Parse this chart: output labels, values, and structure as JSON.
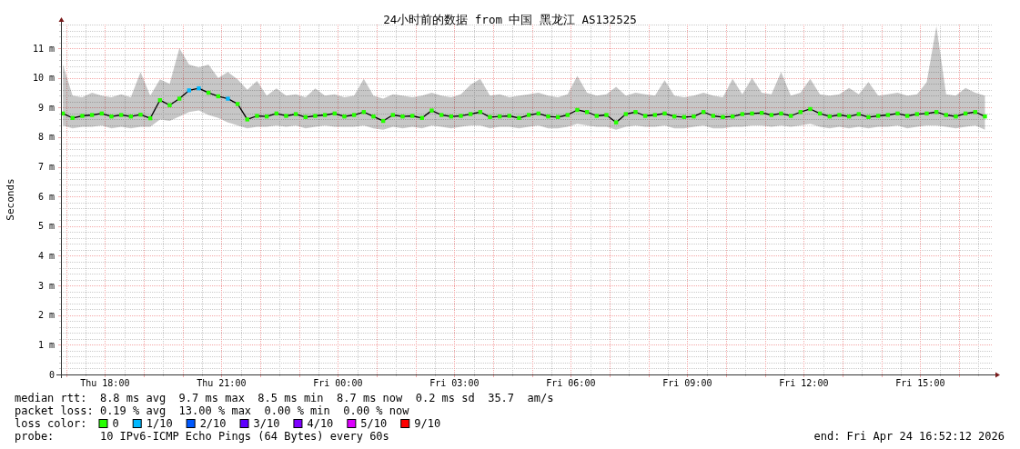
{
  "chart_data": {
    "type": "line",
    "title": "24小时前的数据 from 中国 黑龙江 AS132525",
    "ylabel": "Seconds",
    "legend_title": "loss color:",
    "legend": "bottom",
    "grid": true,
    "marker": "square",
    "xlim": [
      "2026-04-23T16:52",
      "2026-04-24T16:52"
    ],
    "ylim": [
      0,
      11.8
    ],
    "xticks": [
      {
        "value": "2026-04-23T17:00",
        "label": null
      },
      {
        "value": "2026-04-23T17:30",
        "label": null
      },
      {
        "value": "2026-04-23T18:00",
        "label": "Thu 18:00"
      },
      {
        "value": "2026-04-23T18:30",
        "label": null
      },
      {
        "value": "2026-04-23T19:00",
        "label": null
      },
      {
        "value": "2026-04-23T19:30",
        "label": null
      },
      {
        "value": "2026-04-23T20:00",
        "label": null
      },
      {
        "value": "2026-04-23T20:30",
        "label": null
      },
      {
        "value": "2026-04-23T21:00",
        "label": "Thu 21:00"
      },
      {
        "value": "2026-04-23T21:30",
        "label": null
      },
      {
        "value": "2026-04-23T22:00",
        "label": null
      },
      {
        "value": "2026-04-23T22:30",
        "label": null
      },
      {
        "value": "2026-04-23T23:00",
        "label": null
      },
      {
        "value": "2026-04-23T23:30",
        "label": null
      },
      {
        "value": "2026-04-24T00:00",
        "label": "Fri 00:00"
      },
      {
        "value": "2026-04-24T00:30",
        "label": null
      },
      {
        "value": "2026-04-24T01:00",
        "label": null
      },
      {
        "value": "2026-04-24T01:30",
        "label": null
      },
      {
        "value": "2026-04-24T02:00",
        "label": null
      },
      {
        "value": "2026-04-24T02:30",
        "label": null
      },
      {
        "value": "2026-04-24T03:00",
        "label": "Fri 03:00"
      },
      {
        "value": "2026-04-24T03:30",
        "label": null
      },
      {
        "value": "2026-04-24T04:00",
        "label": null
      },
      {
        "value": "2026-04-24T04:30",
        "label": null
      },
      {
        "value": "2026-04-24T05:00",
        "label": null
      },
      {
        "value": "2026-04-24T05:30",
        "label": null
      },
      {
        "value": "2026-04-24T06:00",
        "label": "Fri 06:00"
      },
      {
        "value": "2026-04-24T06:30",
        "label": null
      },
      {
        "value": "2026-04-24T07:00",
        "label": null
      },
      {
        "value": "2026-04-24T07:30",
        "label": null
      },
      {
        "value": "2026-04-24T08:00",
        "label": null
      },
      {
        "value": "2026-04-24T08:30",
        "label": null
      },
      {
        "value": "2026-04-24T09:00",
        "label": "Fri 09:00"
      },
      {
        "value": "2026-04-24T09:30",
        "label": null
      },
      {
        "value": "2026-04-24T10:00",
        "label": null
      },
      {
        "value": "2026-04-24T10:30",
        "label": null
      },
      {
        "value": "2026-04-24T11:00",
        "label": null
      },
      {
        "value": "2026-04-24T11:30",
        "label": null
      },
      {
        "value": "2026-04-24T12:00",
        "label": "Fri 12:00"
      },
      {
        "value": "2026-04-24T12:30",
        "label": null
      },
      {
        "value": "2026-04-24T13:00",
        "label": null
      },
      {
        "value": "2026-04-24T13:30",
        "label": null
      },
      {
        "value": "2026-04-24T14:00",
        "label": null
      },
      {
        "value": "2026-04-24T14:30",
        "label": null
      },
      {
        "value": "2026-04-24T15:00",
        "label": "Fri 15:00"
      },
      {
        "value": "2026-04-24T15:30",
        "label": null
      },
      {
        "value": "2026-04-24T16:00",
        "label": null
      },
      {
        "value": "2026-04-24T16:30",
        "label": null
      }
    ],
    "yticks": [
      0,
      {
        "value": 0.2,
        "label": null
      },
      {
        "value": 0.4,
        "label": null
      },
      {
        "value": 0.6,
        "label": null
      },
      {
        "value": 0.8,
        "label": null
      },
      {
        "value": 1,
        "label": "1 m"
      },
      {
        "value": 1.2,
        "label": null
      },
      {
        "value": 1.4,
        "label": null
      },
      {
        "value": 1.6,
        "label": null
      },
      {
        "value": 1.8,
        "label": null
      },
      {
        "value": 2,
        "label": "2 m"
      },
      {
        "value": 2.2,
        "label": null
      },
      {
        "value": 2.4,
        "label": null
      },
      {
        "value": 2.6,
        "label": null
      },
      {
        "value": 2.8,
        "label": null
      },
      {
        "value": 3,
        "label": "3 m"
      },
      {
        "value": 3.2,
        "label": null
      },
      {
        "value": 3.4,
        "label": null
      },
      {
        "value": 3.6,
        "label": null
      },
      {
        "value": 3.8,
        "label": null
      },
      {
        "value": 4,
        "label": "4 m"
      },
      {
        "value": 4.2,
        "label": null
      },
      {
        "value": 4.4,
        "label": null
      },
      {
        "value": 4.6,
        "label": null
      },
      {
        "value": 4.8,
        "label": null
      },
      {
        "value": 5,
        "label": "5 m"
      },
      {
        "value": 5.2,
        "label": null
      },
      {
        "value": 5.4,
        "label": null
      },
      {
        "value": 5.6,
        "label": null
      },
      {
        "value": 5.8,
        "label": null
      },
      {
        "value": 6,
        "label": "6 m"
      },
      {
        "value": 6.2,
        "label": null
      },
      {
        "value": 6.4,
        "label": null
      },
      {
        "value": 6.6,
        "label": null
      },
      {
        "value": 6.8,
        "label": null
      },
      {
        "value": 7,
        "label": "7 m"
      },
      {
        "value": 7.2,
        "label": null
      },
      {
        "value": 7.4,
        "label": null
      },
      {
        "value": 7.6,
        "label": null
      },
      {
        "value": 7.8,
        "label": null
      },
      {
        "value": 8,
        "label": "8 m"
      },
      {
        "value": 8.2,
        "label": null
      },
      {
        "value": 8.4,
        "label": null
      },
      {
        "value": 8.6,
        "label": null
      },
      {
        "value": 8.8,
        "label": null
      },
      {
        "value": 9,
        "label": "9 m"
      },
      {
        "value": 9.2,
        "label": null
      },
      {
        "value": 9.4,
        "label": null
      },
      {
        "value": 9.6,
        "label": null
      },
      {
        "value": 9.8,
        "label": null
      },
      {
        "value": 10,
        "label": "10 m"
      },
      {
        "value": 10.2,
        "label": null
      },
      {
        "value": 10.4,
        "label": null
      },
      {
        "value": 10.6,
        "label": null
      },
      {
        "value": 10.8,
        "label": null
      },
      {
        "value": 11,
        "label": "11 m"
      },
      {
        "value": 11.2,
        "label": null
      },
      {
        "value": 11.4,
        "label": null
      },
      {
        "value": 11.6,
        "label": null
      },
      {
        "value": 11.8,
        "label": null
      }
    ],
    "x": [
      "2026-04-23T16:55",
      "2026-04-23T17:10",
      "2026-04-23T17:25",
      "2026-04-23T17:40",
      "2026-04-23T17:55",
      "2026-04-23T18:10",
      "2026-04-23T18:25",
      "2026-04-23T18:40",
      "2026-04-23T18:55",
      "2026-04-23T19:10",
      "2026-04-23T19:25",
      "2026-04-23T19:40",
      "2026-04-23T19:55",
      "2026-04-23T20:10",
      "2026-04-23T20:25",
      "2026-04-23T20:40",
      "2026-04-23T20:55",
      "2026-04-23T21:10",
      "2026-04-23T21:25",
      "2026-04-23T21:40",
      "2026-04-23T21:55",
      "2026-04-23T22:10",
      "2026-04-23T22:25",
      "2026-04-23T22:40",
      "2026-04-23T22:55",
      "2026-04-23T23:10",
      "2026-04-23T23:25",
      "2026-04-23T23:40",
      "2026-04-23T23:55",
      "2026-04-24T00:10",
      "2026-04-24T00:25",
      "2026-04-24T00:40",
      "2026-04-24T00:55",
      "2026-04-24T01:10",
      "2026-04-24T01:25",
      "2026-04-24T01:40",
      "2026-04-24T01:55",
      "2026-04-24T02:10",
      "2026-04-24T02:25",
      "2026-04-24T02:40",
      "2026-04-24T02:55",
      "2026-04-24T03:10",
      "2026-04-24T03:25",
      "2026-04-24T03:40",
      "2026-04-24T03:55",
      "2026-04-24T04:10",
      "2026-04-24T04:25",
      "2026-04-24T04:40",
      "2026-04-24T04:55",
      "2026-04-24T05:10",
      "2026-04-24T05:25",
      "2026-04-24T05:40",
      "2026-04-24T05:55",
      "2026-04-24T06:10",
      "2026-04-24T06:25",
      "2026-04-24T06:40",
      "2026-04-24T06:55",
      "2026-04-24T07:10",
      "2026-04-24T07:25",
      "2026-04-24T07:40",
      "2026-04-24T07:55",
      "2026-04-24T08:10",
      "2026-04-24T08:25",
      "2026-04-24T08:40",
      "2026-04-24T08:55",
      "2026-04-24T09:10",
      "2026-04-24T09:25",
      "2026-04-24T09:40",
      "2026-04-24T09:55",
      "2026-04-24T10:10",
      "2026-04-24T10:25",
      "2026-04-24T10:40",
      "2026-04-24T10:55",
      "2026-04-24T11:10",
      "2026-04-24T11:25",
      "2026-04-24T11:40",
      "2026-04-24T11:55",
      "2026-04-24T12:10",
      "2026-04-24T12:25",
      "2026-04-24T12:40",
      "2026-04-24T12:55",
      "2026-04-24T13:10",
      "2026-04-24T13:25",
      "2026-04-24T13:40",
      "2026-04-24T13:55",
      "2026-04-24T14:10",
      "2026-04-24T14:25",
      "2026-04-24T14:40",
      "2026-04-24T14:55",
      "2026-04-24T15:10",
      "2026-04-24T15:25",
      "2026-04-24T15:40",
      "2026-04-24T15:55",
      "2026-04-24T16:10",
      "2026-04-24T16:25",
      "2026-04-24T16:40"
    ],
    "series": [
      {
        "color": "#000000",
        "marker": "none",
        "values": [
          8.8,
          8.65,
          8.72,
          8.75,
          8.8,
          8.7,
          8.75,
          8.7,
          8.76,
          8.64,
          9.25,
          9.08,
          9.3,
          9.58,
          9.65,
          9.5,
          9.38,
          9.3,
          9.12,
          8.6,
          8.72,
          8.7,
          8.8,
          8.72,
          8.78,
          8.68,
          8.72,
          8.75,
          8.8,
          8.7,
          8.75,
          8.85,
          8.7,
          8.55,
          8.75,
          8.7,
          8.72,
          8.65,
          8.9,
          8.75,
          8.7,
          8.72,
          8.78,
          8.85,
          8.68,
          8.7,
          8.72,
          8.65,
          8.75,
          8.8,
          8.7,
          8.68,
          8.75,
          8.92,
          8.85,
          8.72,
          8.75,
          8.5,
          8.78,
          8.85,
          8.72,
          8.75,
          8.8,
          8.7,
          8.68,
          8.7,
          8.85,
          8.72,
          8.68,
          8.7,
          8.78,
          8.8,
          8.82,
          8.75,
          8.8,
          8.72,
          8.85,
          8.95,
          8.8,
          8.7,
          8.75,
          8.7,
          8.78,
          8.68,
          8.72,
          8.75,
          8.8,
          8.72,
          8.78,
          8.8,
          8.85,
          8.75,
          8.7,
          8.8,
          8.85,
          8.7
        ],
        "lower": [
          8.4,
          8.3,
          8.35,
          8.35,
          8.4,
          8.3,
          8.35,
          8.3,
          8.35,
          8.35,
          8.6,
          8.55,
          8.7,
          8.85,
          8.9,
          8.75,
          8.65,
          8.5,
          8.4,
          8.3,
          8.35,
          8.35,
          8.4,
          8.35,
          8.4,
          8.3,
          8.35,
          8.4,
          8.35,
          8.35,
          8.35,
          8.4,
          8.3,
          8.25,
          8.35,
          8.3,
          8.35,
          8.3,
          8.4,
          8.35,
          8.3,
          8.35,
          8.4,
          8.4,
          8.3,
          8.35,
          8.35,
          8.3,
          8.35,
          8.4,
          8.3,
          8.3,
          8.35,
          8.45,
          8.4,
          8.35,
          8.35,
          8.25,
          8.35,
          8.4,
          8.35,
          8.35,
          8.4,
          8.3,
          8.3,
          8.35,
          8.4,
          8.3,
          8.3,
          8.35,
          8.35,
          8.4,
          8.4,
          8.35,
          8.4,
          8.35,
          8.4,
          8.45,
          8.35,
          8.3,
          8.35,
          8.3,
          8.35,
          8.3,
          8.35,
          8.35,
          8.4,
          8.3,
          8.35,
          8.4,
          8.4,
          8.35,
          8.3,
          8.35,
          8.4,
          8.25
        ],
        "upper": [
          10.45,
          9.4,
          9.35,
          9.5,
          9.4,
          9.35,
          9.45,
          9.35,
          10.2,
          9.4,
          9.95,
          9.8,
          11.0,
          10.45,
          10.35,
          10.45,
          10.0,
          10.2,
          9.95,
          9.6,
          9.9,
          9.4,
          9.65,
          9.4,
          9.45,
          9.35,
          9.65,
          9.4,
          9.45,
          9.35,
          9.4,
          9.97,
          9.4,
          9.3,
          9.45,
          9.4,
          9.35,
          9.4,
          9.5,
          9.4,
          9.35,
          9.45,
          9.77,
          9.97,
          9.4,
          9.45,
          9.35,
          9.4,
          9.45,
          9.5,
          9.4,
          9.35,
          9.45,
          10.07,
          9.5,
          9.4,
          9.45,
          9.7,
          9.4,
          9.5,
          9.45,
          9.4,
          9.92,
          9.4,
          9.35,
          9.4,
          9.5,
          9.4,
          9.35,
          9.97,
          9.45,
          10.0,
          9.5,
          9.45,
          10.2,
          9.4,
          9.5,
          9.97,
          9.45,
          9.4,
          9.45,
          9.66,
          9.45,
          9.86,
          9.4,
          9.45,
          9.5,
          9.4,
          9.45,
          9.86,
          11.75,
          9.45,
          9.4,
          9.66,
          9.5,
          9.4
        ]
      },
      {
        "name": "0",
        "type": "scatter",
        "color": "#26ff00",
        "values": [
          8.8,
          8.65,
          8.72,
          8.75,
          8.8,
          8.7,
          8.75,
          8.7,
          8.76,
          8.64,
          9.25,
          9.08,
          9.3,
          null,
          null,
          9.5,
          9.38,
          null,
          9.12,
          8.6,
          8.72,
          8.7,
          8.8,
          8.72,
          8.78,
          8.68,
          8.72,
          8.75,
          8.8,
          8.7,
          8.75,
          8.85,
          8.7,
          8.55,
          8.75,
          8.7,
          8.72,
          8.65,
          8.9,
          8.75,
          8.7,
          8.72,
          8.78,
          8.85,
          8.68,
          8.7,
          8.72,
          8.65,
          8.75,
          8.8,
          8.7,
          8.68,
          8.75,
          8.92,
          8.85,
          8.72,
          8.75,
          8.5,
          8.78,
          8.85,
          8.72,
          8.75,
          8.8,
          8.7,
          8.68,
          8.7,
          8.85,
          8.72,
          8.68,
          8.7,
          8.78,
          8.8,
          8.82,
          8.75,
          8.8,
          8.72,
          8.85,
          8.95,
          8.8,
          8.7,
          8.75,
          8.7,
          8.78,
          8.68,
          8.72,
          8.75,
          8.8,
          8.72,
          8.78,
          8.8,
          8.85,
          8.75,
          8.7,
          8.8,
          8.85,
          8.7
        ]
      },
      {
        "name": "1/10",
        "type": "scatter",
        "color": "#00b8ff",
        "x": [
          "2026-04-23T20:10",
          "2026-04-23T20:25",
          "2026-04-23T21:10"
        ],
        "values": [
          9.58,
          9.65,
          9.3
        ]
      },
      {
        "name": "2/10",
        "type": "scatter",
        "color": "#0059ff",
        "values": [
          null,
          null,
          null,
          null,
          null,
          null,
          null,
          null,
          null,
          null,
          null,
          null,
          null,
          null,
          null,
          null,
          null,
          null,
          null,
          null,
          null,
          null,
          null,
          null,
          null,
          null,
          null,
          null,
          null,
          null,
          null,
          null,
          null,
          null,
          null,
          null,
          null,
          null,
          null,
          null,
          null,
          null,
          null,
          null,
          null,
          null,
          null,
          null,
          null,
          null,
          null,
          null,
          null,
          null,
          null,
          null,
          null,
          null,
          null,
          null,
          null,
          null,
          null,
          null,
          null,
          null,
          null,
          null,
          null,
          null,
          null,
          null,
          null,
          null,
          null,
          null,
          null,
          null,
          null,
          null,
          null,
          null,
          null,
          null,
          null,
          null,
          null,
          null,
          null,
          null,
          null,
          null,
          null,
          null,
          null,
          null
        ]
      },
      {
        "name": "3/10",
        "type": "scatter",
        "color": "#5e00ff",
        "values": [
          null,
          null,
          null,
          null,
          null,
          null,
          null,
          null,
          null,
          null,
          null,
          null,
          null,
          null,
          null,
          null,
          null,
          null,
          null,
          null,
          null,
          null,
          null,
          null,
          null,
          null,
          null,
          null,
          null,
          null,
          null,
          null,
          null,
          null,
          null,
          null,
          null,
          null,
          null,
          null,
          null,
          null,
          null,
          null,
          null,
          null,
          null,
          null,
          null,
          null,
          null,
          null,
          null,
          null,
          null,
          null,
          null,
          null,
          null,
          null,
          null,
          null,
          null,
          null,
          null,
          null,
          null,
          null,
          null,
          null,
          null,
          null,
          null,
          null,
          null,
          null,
          null,
          null,
          null,
          null,
          null,
          null,
          null,
          null,
          null,
          null,
          null,
          null,
          null,
          null,
          null,
          null,
          null,
          null,
          null,
          null
        ]
      },
      {
        "name": "4/10",
        "type": "scatter",
        "color": "#7e00ff",
        "values": [
          null,
          null,
          null,
          null,
          null,
          null,
          null,
          null,
          null,
          null,
          null,
          null,
          null,
          null,
          null,
          null,
          null,
          null,
          null,
          null,
          null,
          null,
          null,
          null,
          null,
          null,
          null,
          null,
          null,
          null,
          null,
          null,
          null,
          null,
          null,
          null,
          null,
          null,
          null,
          null,
          null,
          null,
          null,
          null,
          null,
          null,
          null,
          null,
          null,
          null,
          null,
          null,
          null,
          null,
          null,
          null,
          null,
          null,
          null,
          null,
          null,
          null,
          null,
          null,
          null,
          null,
          null,
          null,
          null,
          null,
          null,
          null,
          null,
          null,
          null,
          null,
          null,
          null,
          null,
          null,
          null,
          null,
          null,
          null,
          null,
          null,
          null,
          null,
          null,
          null,
          null,
          null,
          null,
          null,
          null,
          null
        ]
      },
      {
        "name": "5/10",
        "type": "scatter",
        "color": "#dd00ff",
        "values": [
          null,
          null,
          null,
          null,
          null,
          null,
          null,
          null,
          null,
          null,
          null,
          null,
          null,
          null,
          null,
          null,
          null,
          null,
          null,
          null,
          null,
          null,
          null,
          null,
          null,
          null,
          null,
          null,
          null,
          null,
          null,
          null,
          null,
          null,
          null,
          null,
          null,
          null,
          null,
          null,
          null,
          null,
          null,
          null,
          null,
          null,
          null,
          null,
          null,
          null,
          null,
          null,
          null,
          null,
          null,
          null,
          null,
          null,
          null,
          null,
          null,
          null,
          null,
          null,
          null,
          null,
          null,
          null,
          null,
          null,
          null,
          null,
          null,
          null,
          null,
          null,
          null,
          null,
          null,
          null,
          null,
          null,
          null,
          null,
          null,
          null,
          null,
          null,
          null,
          null,
          null,
          null,
          null,
          null,
          null,
          null
        ]
      },
      {
        "name": "9/10",
        "type": "scatter",
        "color": "#ff0000",
        "values": [
          null,
          null,
          null,
          null,
          null,
          null,
          null,
          null,
          null,
          null,
          null,
          null,
          null,
          null,
          null,
          null,
          null,
          null,
          null,
          null,
          null,
          null,
          null,
          null,
          null,
          null,
          null,
          null,
          null,
          null,
          null,
          null,
          null,
          null,
          null,
          null,
          null,
          null,
          null,
          null,
          null,
          null,
          null,
          null,
          null,
          null,
          null,
          null,
          null,
          null,
          null,
          null,
          null,
          null,
          null,
          null,
          null,
          null,
          null,
          null,
          null,
          null,
          null,
          null,
          null,
          null,
          null,
          null,
          null,
          null,
          null,
          null,
          null,
          null,
          null,
          null,
          null,
          null,
          null,
          null,
          null,
          null,
          null,
          null,
          null,
          null,
          null,
          null,
          null,
          null,
          null,
          null,
          null,
          null,
          null,
          null
        ]
      }
    ],
    "annotations": [
      "median rtt:  8.8 ms avg  9.7 ms max  8.5 ms min  8.7 ms now  0.2 ms sd  35.7  am/s",
      "packet loss: 0.19 % avg  13.00 % max  0.00 % min  0.00 % now",
      "probe:       10 IPv6-ICMP Echo Pings (64 Bytes) every 60s",
      "end: Fri Apr 24 16:52:12 2026"
    ]
  }
}
